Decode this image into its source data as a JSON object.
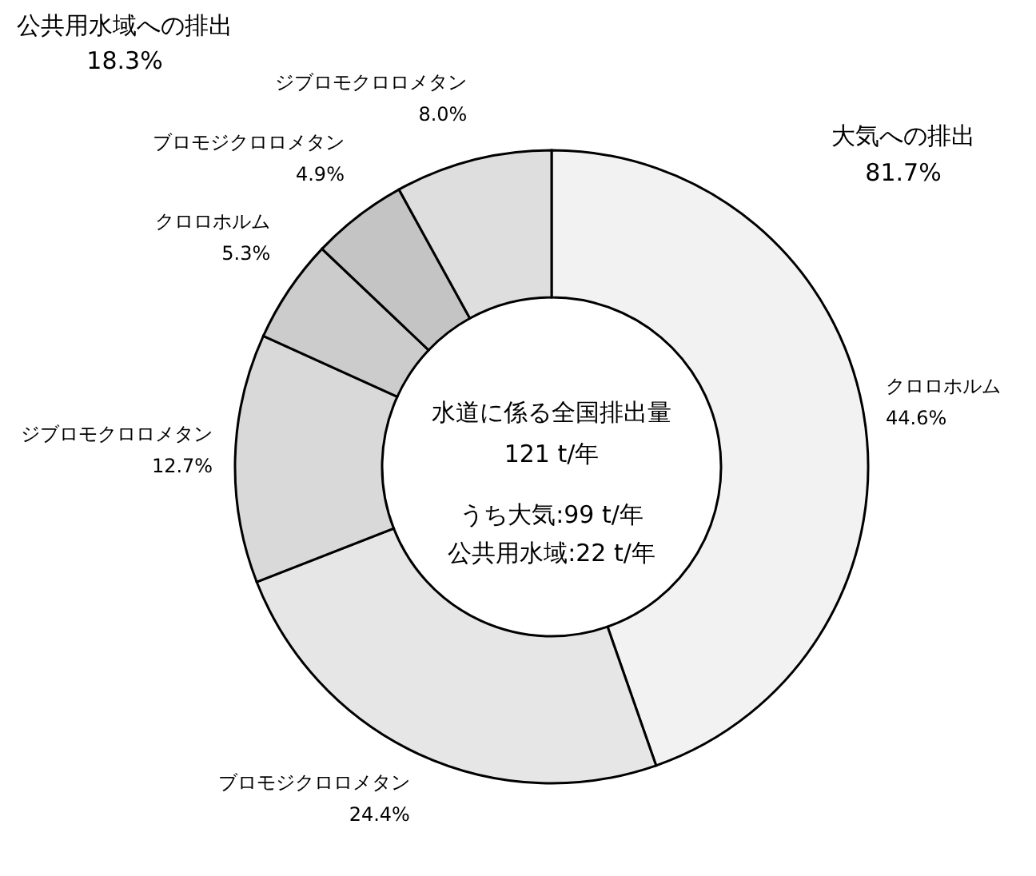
{
  "chart_data": {
    "type": "donut",
    "categories": [
      "クロロホルム",
      "ブロモジクロロメタン",
      "ジブロモクロロメタン",
      "クロロホルム",
      "ブロモジクロロメタン",
      "ジブロモクロロメタン"
    ],
    "values": [
      44.6,
      24.4,
      12.7,
      5.3,
      4.9,
      8.0
    ],
    "colors": [
      "#f2f2f2",
      "#e6e6e6",
      "#d9d9d9",
      "#cccccc",
      "#c4c4c4",
      "#dedede"
    ],
    "value_labels": [
      "44.6%",
      "24.4%",
      "12.7%",
      "5.3%",
      "4.9%",
      "8.0%"
    ],
    "annotations": [
      "公共用水域への排出",
      "18.3%",
      "大気への排出",
      "81.7%",
      "水道に係る全国排出量",
      "121 t/年",
      "うち大気:99 t/年",
      "公共用水域:22 t/年"
    ]
  }
}
